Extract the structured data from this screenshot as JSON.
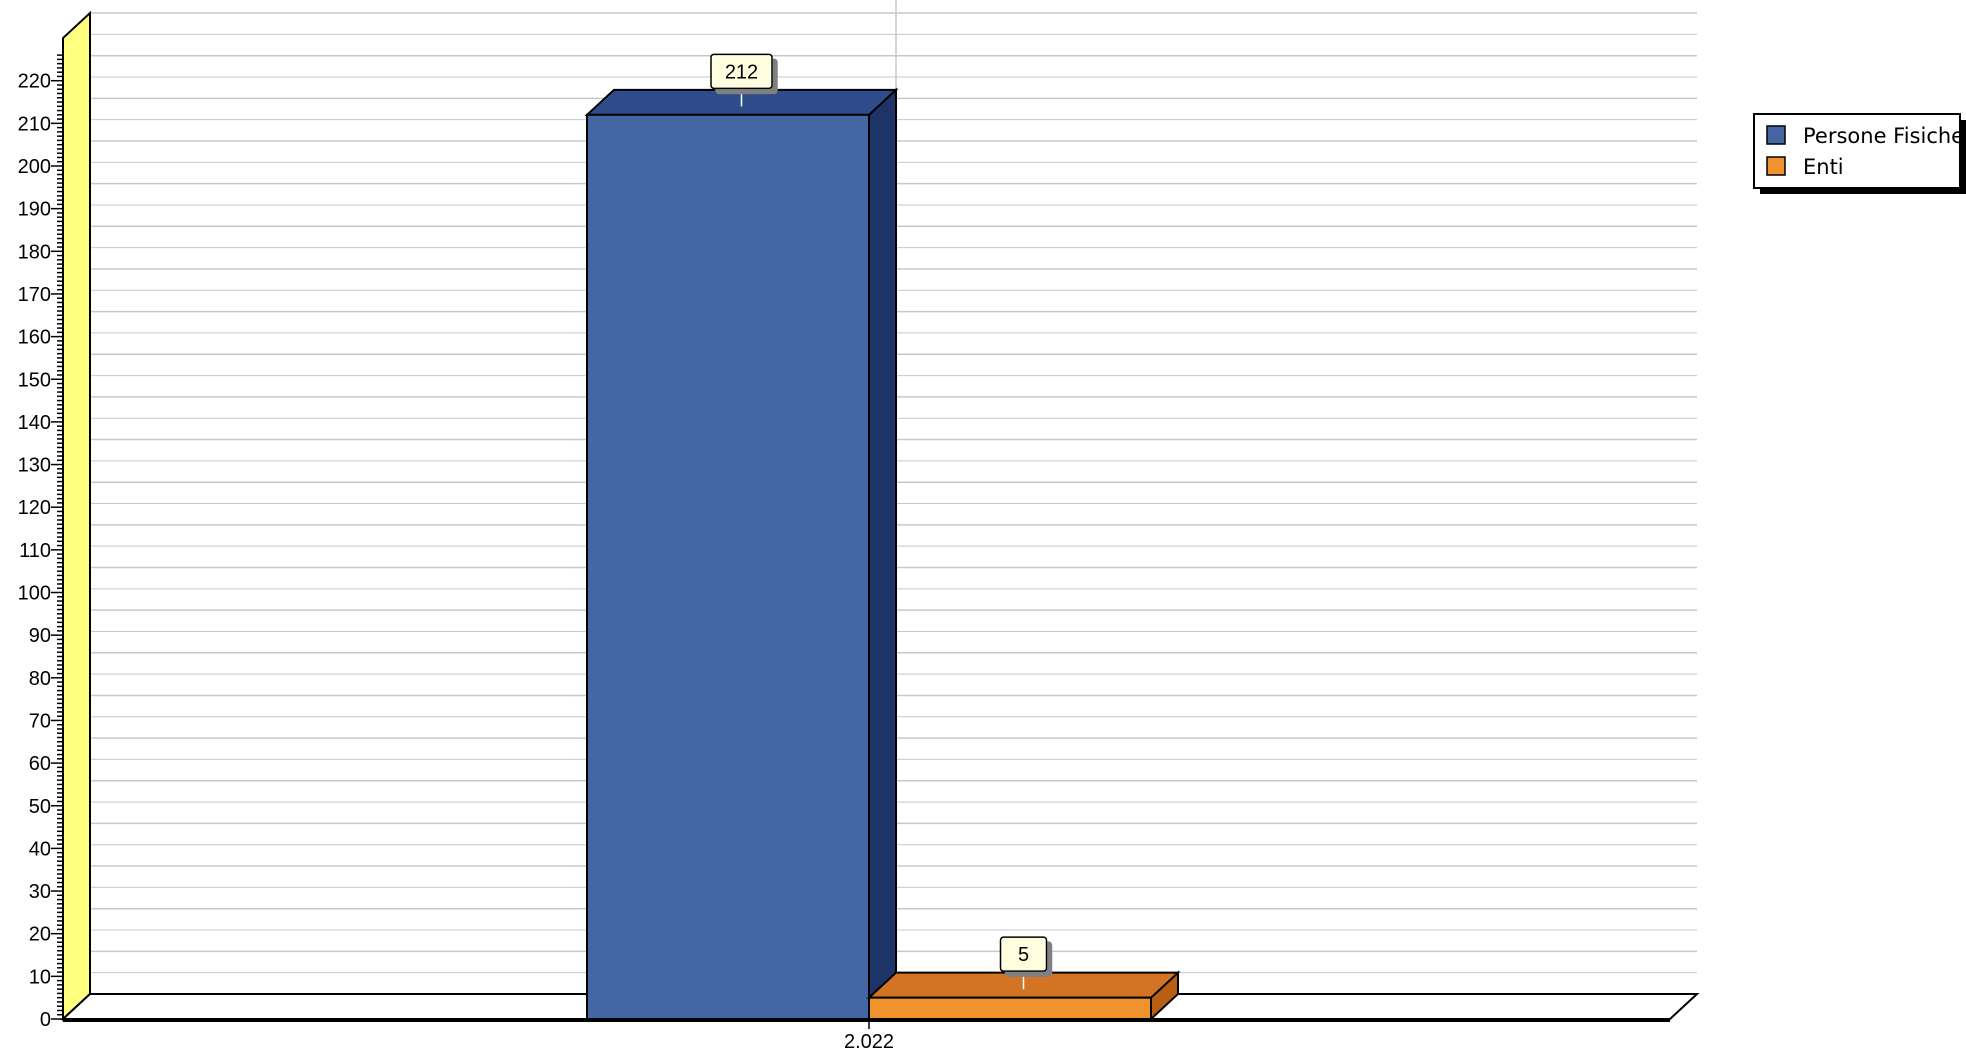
{
  "chart_data": {
    "type": "bar",
    "categories": [
      "2.022"
    ],
    "series": [
      {
        "name": "Persone Fisiche",
        "values": [
          212
        ]
      },
      {
        "name": "Enti",
        "values": [
          5
        ]
      }
    ],
    "data_labels": [
      "212",
      "5"
    ],
    "yticks": [
      0,
      10,
      20,
      30,
      40,
      50,
      60,
      70,
      80,
      90,
      100,
      110,
      120,
      130,
      140,
      150,
      160,
      170,
      180,
      190,
      200,
      210,
      220
    ],
    "ylim": [
      0,
      230
    ],
    "grid": true,
    "three_d": true,
    "legend_position": "right-top",
    "colors": {
      "series": [
        "#4466a4",
        "#f0922e"
      ],
      "series_side": [
        "#1e3466",
        "#b85f14"
      ],
      "series_top": [
        "#2e4c8a",
        "#d27424"
      ],
      "axis_wall": "#ffff80",
      "data_label_bg": "#ffffe0",
      "grid": "#c8c8c8"
    }
  }
}
